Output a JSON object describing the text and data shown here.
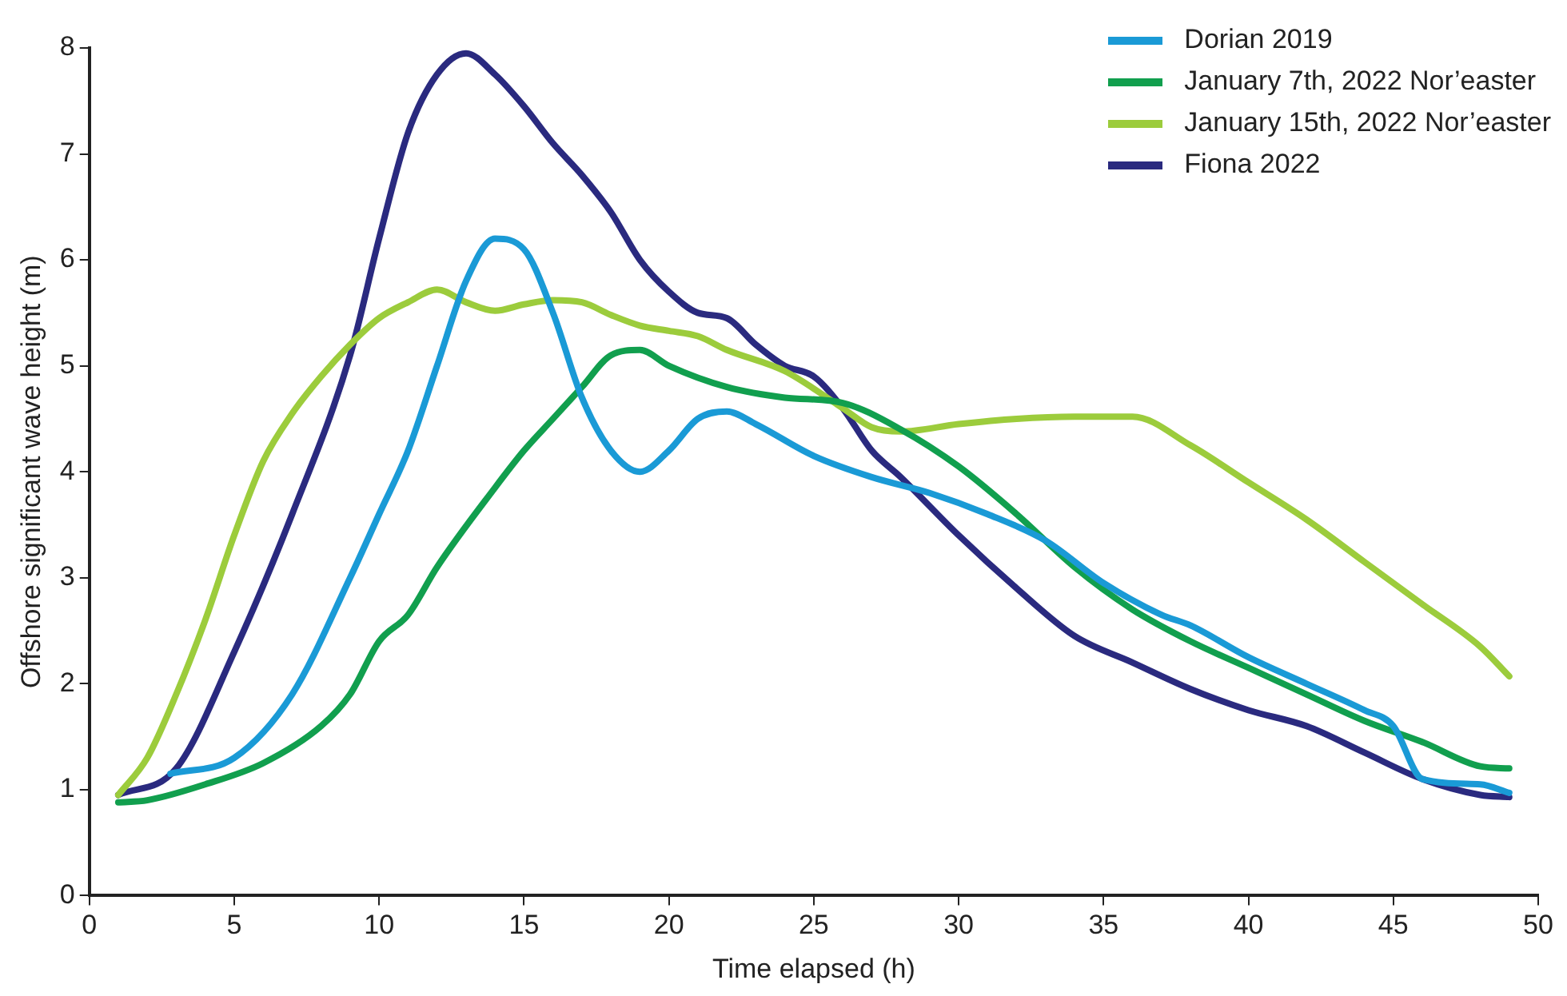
{
  "chart_data": {
    "type": "line",
    "xlabel": "Time elapsed (h)",
    "ylabel": "Offshore significant wave height (m)",
    "xlim": [
      0,
      50
    ],
    "ylim": [
      0,
      8
    ],
    "xticks": [
      0,
      5,
      10,
      15,
      20,
      25,
      30,
      35,
      40,
      45,
      50
    ],
    "yticks": [
      0,
      1,
      2,
      3,
      4,
      5,
      6,
      7,
      8
    ],
    "legend": "top right",
    "marker": "none",
    "series": [
      {
        "name": "Dorian 2019",
        "color": "#1a9ad6",
        "x": [
          2.8,
          5,
          7,
          9,
          10,
          11,
          12,
          13,
          14,
          15,
          16,
          17,
          18,
          19,
          20,
          21,
          22,
          23,
          25,
          27,
          29,
          31,
          33,
          35,
          37,
          38,
          40,
          42,
          44,
          45,
          46,
          48,
          49
        ],
        "values": [
          1.15,
          1.3,
          1.9,
          3.0,
          3.6,
          4.2,
          5.0,
          5.8,
          6.2,
          6.1,
          5.5,
          4.7,
          4.2,
          4.0,
          4.2,
          4.5,
          4.57,
          4.45,
          4.15,
          3.95,
          3.8,
          3.6,
          3.35,
          2.95,
          2.65,
          2.55,
          2.25,
          2.0,
          1.75,
          1.6,
          1.1,
          1.05,
          0.97
        ]
      },
      {
        "name": "January 7th, 2022 Nor’easter",
        "color": "#119f4e",
        "x": [
          1,
          2,
          4,
          6,
          8,
          9,
          10,
          11,
          12,
          14,
          15,
          16,
          17,
          18,
          19,
          20,
          22,
          24,
          26,
          28,
          30,
          32,
          34,
          36,
          38,
          40,
          42,
          44,
          46,
          48,
          49
        ],
        "values": [
          0.88,
          0.9,
          1.05,
          1.25,
          1.6,
          1.9,
          2.4,
          2.65,
          3.1,
          3.85,
          4.2,
          4.5,
          4.8,
          5.1,
          5.15,
          5.0,
          4.8,
          4.7,
          4.65,
          4.4,
          4.05,
          3.6,
          3.1,
          2.7,
          2.4,
          2.15,
          1.9,
          1.65,
          1.45,
          1.22,
          1.2
        ]
      },
      {
        "name": "January 15th, 2022 Nor’easter",
        "color": "#9ccc3c",
        "x": [
          1,
          2,
          3,
          4,
          5,
          6,
          7,
          8,
          9,
          10,
          11,
          12,
          13,
          14,
          15,
          16,
          17,
          18,
          19,
          20,
          21,
          22,
          24,
          26,
          27,
          28,
          30,
          32,
          34,
          36,
          38,
          40,
          42,
          44,
          46,
          48,
          49
        ],
        "values": [
          0.95,
          1.3,
          1.9,
          2.6,
          3.4,
          4.1,
          4.55,
          4.9,
          5.2,
          5.45,
          5.6,
          5.72,
          5.6,
          5.52,
          5.58,
          5.62,
          5.6,
          5.48,
          5.38,
          5.33,
          5.28,
          5.15,
          4.95,
          4.6,
          4.42,
          4.38,
          4.45,
          4.5,
          4.52,
          4.52,
          4.25,
          3.9,
          3.55,
          3.15,
          2.75,
          2.35,
          2.07
        ]
      },
      {
        "name": "Fiona 2022",
        "color": "#2a2a7f",
        "x": [
          1,
          3,
          5,
          7,
          9,
          10,
          11,
          12,
          13,
          14,
          15,
          16,
          17,
          18,
          19,
          20,
          21,
          22,
          23,
          24,
          25,
          26,
          27,
          28,
          30,
          32,
          34,
          36,
          38,
          40,
          42,
          44,
          46,
          48,
          49
        ],
        "values": [
          0.95,
          1.2,
          2.3,
          3.6,
          5.1,
          6.2,
          7.2,
          7.75,
          7.95,
          7.75,
          7.45,
          7.1,
          6.8,
          6.45,
          6.0,
          5.7,
          5.5,
          5.45,
          5.2,
          5.0,
          4.9,
          4.6,
          4.2,
          3.95,
          3.4,
          2.9,
          2.45,
          2.2,
          1.95,
          1.75,
          1.6,
          1.35,
          1.1,
          0.95,
          0.93
        ]
      }
    ]
  }
}
